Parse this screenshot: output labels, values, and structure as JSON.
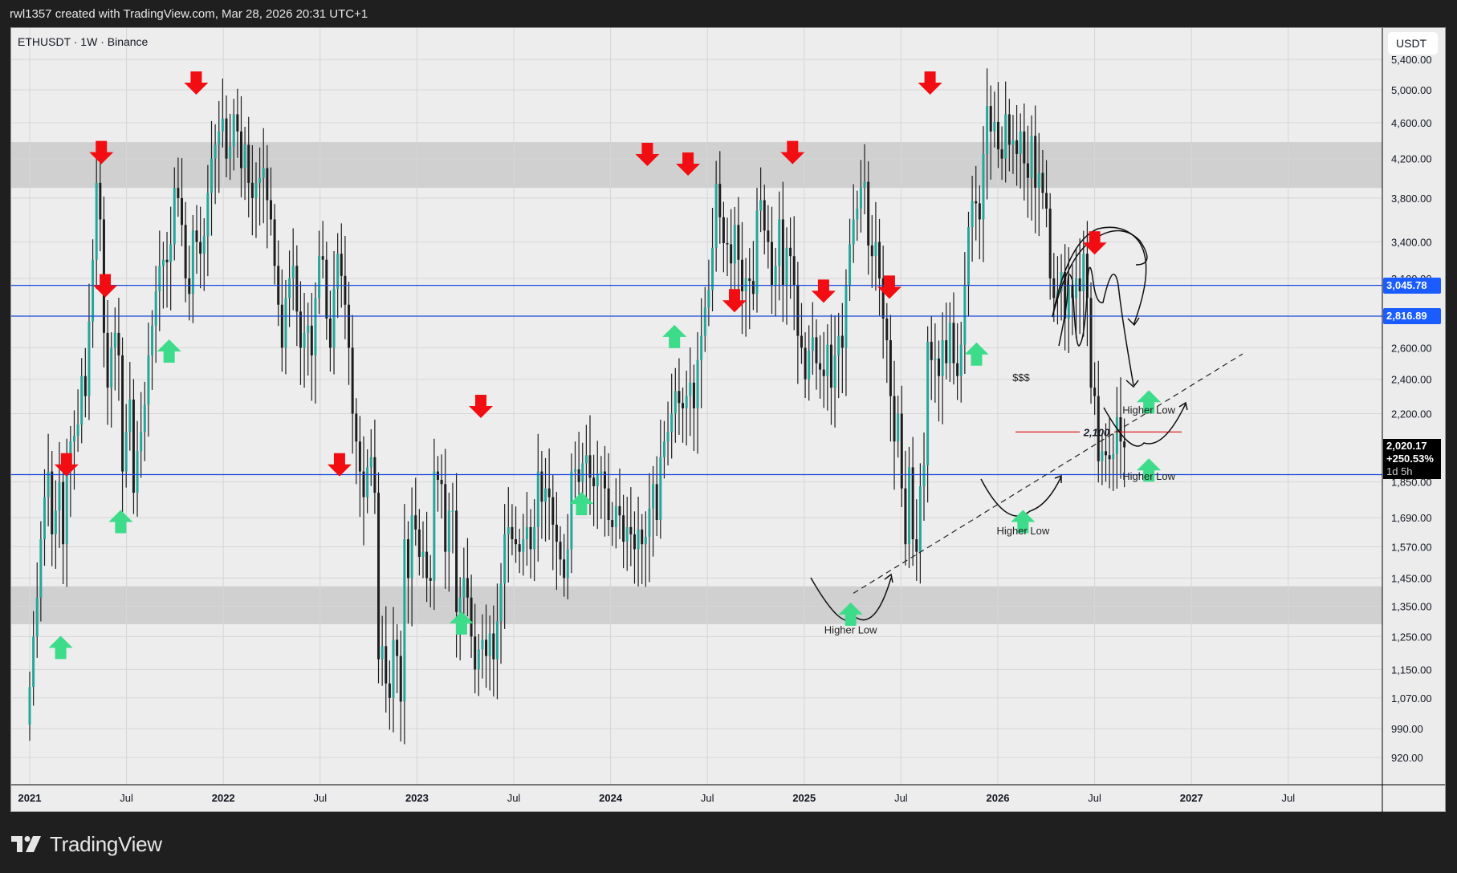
{
  "header": {
    "attribution": "rwl1357 created with TradingView.com, Mar 28, 2026 20:31 UTC+1"
  },
  "chart": {
    "symbol_line": "ETHUSDT · 1W · Binance",
    "currency_button": "USDT",
    "logo_text": "TradingView"
  },
  "colors": {
    "up": "#26a69a",
    "down": "#1e1e1e",
    "level_line": "#1848d8",
    "level_tag": "#1a5cff",
    "red_line": "#e0201b",
    "sell_arrow": "#f20d12",
    "buy_arrow": "#3ddc8a",
    "zone": "#d0d0d0",
    "background": "#ededed"
  },
  "chart_data": {
    "type": "candlestick",
    "title": "ETHUSDT · 1W · Binance",
    "xlabel": "",
    "ylabel": "USDT",
    "y_scale": "log",
    "ylim": [
      860,
      5500
    ],
    "y_ticks": [
      "920.00",
      "990.00",
      "1,070.00",
      "1,150.00",
      "1,250.00",
      "1,350.00",
      "1,450.00",
      "1,570.00",
      "1,690.00",
      "1,850.00",
      "2,200.00",
      "2,400.00",
      "2,600.00",
      "3,100.00",
      "3,400.00",
      "3,800.00",
      "4,200.00",
      "4,600.00",
      "5,000.00",
      "5,400.00"
    ],
    "y_tick_values": [
      920,
      990,
      1070,
      1150,
      1250,
      1350,
      1450,
      1570,
      1690,
      1850,
      2200,
      2400,
      2600,
      3100,
      3400,
      3800,
      4200,
      4600,
      5000,
      5400
    ],
    "x_ticks": [
      {
        "label": "2021",
        "t": 2021.0,
        "bold": true
      },
      {
        "label": "Jul",
        "t": 2021.5,
        "bold": false
      },
      {
        "label": "2022",
        "t": 2022.0,
        "bold": true
      },
      {
        "label": "Jul",
        "t": 2022.5,
        "bold": false
      },
      {
        "label": "2023",
        "t": 2023.0,
        "bold": true
      },
      {
        "label": "Jul",
        "t": 2023.5,
        "bold": false
      },
      {
        "label": "2024",
        "t": 2024.0,
        "bold": true
      },
      {
        "label": "Jul",
        "t": 2024.5,
        "bold": false
      },
      {
        "label": "2025",
        "t": 2025.0,
        "bold": true
      },
      {
        "label": "Jul",
        "t": 2025.5,
        "bold": false
      },
      {
        "label": "2026",
        "t": 2026.0,
        "bold": true
      },
      {
        "label": "Jul",
        "t": 2026.5,
        "bold": false
      },
      {
        "label": "2027",
        "t": 2027.0,
        "bold": true
      },
      {
        "label": "Jul",
        "t": 2027.5,
        "bold": false
      }
    ],
    "start": 2021.0,
    "weekly_close": [
      1100,
      1250,
      1380,
      1600,
      1780,
      1900,
      1620,
      1720,
      1850,
      1580,
      1900,
      2050,
      2080,
      2140,
      2420,
      2300,
      2780,
      3250,
      3950,
      3600,
      2700,
      2350,
      2600,
      2700,
      2550,
      1900,
      2100,
      2280,
      1800,
      2000,
      2100,
      2250,
      2550,
      2750,
      3000,
      3200,
      3250,
      3230,
      3380,
      3900,
      3800,
      3550,
      3100,
      2980,
      3500,
      3400,
      3300,
      3450,
      3850,
      4200,
      4350,
      4500,
      4650,
      4200,
      4330,
      4700,
      4500,
      4100,
      4350,
      3950,
      3800,
      3950,
      4000,
      4100,
      3780,
      3600,
      3200,
      2900,
      2600,
      2950,
      3100,
      3200,
      2850,
      2600,
      2700,
      2750,
      2550,
      2950,
      3280,
      3250,
      2800,
      2600,
      3020,
      3300,
      3120,
      2900,
      2600,
      2200,
      2050,
      1900,
      1780,
      1920,
      1970,
      1800,
      1180,
      1220,
      1110,
      1070,
      1240,
      1190,
      1060,
      1600,
      1450,
      1700,
      1640,
      1530,
      1550,
      1450,
      1440,
      1900,
      1860,
      1840,
      1550,
      1720,
      1720,
      1330,
      1380,
      1450,
      1380,
      1250,
      1150,
      1210,
      1240,
      1190,
      1260,
      1180,
      1300,
      1430,
      1620,
      1650,
      1600,
      1580,
      1550,
      1600,
      1650,
      1560,
      1650,
      1900,
      1760,
      1820,
      1780,
      1660,
      1590,
      1520,
      1450,
      1560,
      1900,
      1910,
      1850,
      1940,
      1980,
      1870,
      1830,
      1890,
      1900,
      1820,
      1680,
      1650,
      1740,
      1700,
      1590,
      1650,
      1620,
      1560,
      1640,
      1580,
      1610,
      1730,
      1840,
      1680,
      1970,
      2050,
      2100,
      2200,
      2330,
      2260,
      2230,
      2300,
      2380,
      2230,
      2520,
      2680,
      2880,
      3010,
      3350,
      3940,
      3620,
      3390,
      3380,
      3220,
      3550,
      3250,
      3000,
      3100,
      3080,
      2980,
      3680,
      3780,
      3500,
      3400,
      3050,
      3200,
      3600,
      3050,
      3350,
      3280,
      3050,
      2680,
      2600,
      2400,
      2580,
      2670,
      2500,
      2460,
      2420,
      2620,
      2350,
      2550,
      2680,
      2600,
      3050,
      3380,
      3600,
      3700,
      3900,
      3960,
      3370,
      3280,
      3400,
      3100,
      2800,
      2650,
      2300,
      2050,
      2200,
      1820,
      1580,
      1920,
      1600,
      1550,
      1830,
      1930,
      2640,
      2520,
      2530,
      2420,
      2650,
      2500,
      2770,
      2500,
      2420,
      2620,
      3050,
      3530,
      3770,
      3750,
      3600,
      4250,
      4800,
      4500,
      4610,
      4300,
      4200,
      4700,
      4350,
      4400,
      4250,
      4500,
      4150,
      4000,
      4450,
      3900,
      4050,
      3850,
      3700,
      3100,
      2950,
      3000,
      3150,
      2800,
      3050,
      2950,
      3100,
      3000,
      3300,
      2950,
      2350,
      2300,
      1950,
      2000,
      1980,
      1960,
      1985,
      2180,
      2050,
      2020
    ],
    "zones": [
      {
        "name": "resistance-zone",
        "low": 3900,
        "high": 4380
      },
      {
        "name": "support-zone",
        "low": 1290,
        "high": 1420
      }
    ],
    "horizontal_levels": [
      {
        "name": "level-3045",
        "price": 3045.78,
        "label": "3,045.78",
        "tagged": true
      },
      {
        "name": "level-2816",
        "price": 2816.89,
        "label": "2,816.89",
        "tagged": true
      },
      {
        "name": "level-1900",
        "price": 1885,
        "label": "",
        "tagged": false
      }
    ],
    "last_price": {
      "value": "2,020.17",
      "change": "+250.53%",
      "countdown": "1d 5h",
      "price": 2020.17
    },
    "red_level": {
      "price": 2100,
      "label": "2,100"
    },
    "sell_arrows": [
      [
        2021.19,
        1880
      ],
      [
        2021.37,
        4150
      ],
      [
        2021.39,
        2960
      ],
      [
        2021.86,
        4950
      ],
      [
        2022.6,
        1880
      ],
      [
        2023.33,
        2180
      ],
      [
        2024.19,
        4130
      ],
      [
        2024.4,
        4030
      ],
      [
        2024.64,
        2850
      ],
      [
        2024.94,
        4150
      ],
      [
        2025.1,
        2920
      ],
      [
        2025.44,
        2950
      ],
      [
        2025.65,
        4950
      ],
      [
        2026.5,
        3300
      ]
    ],
    "buy_arrows": [
      [
        2021.16,
        1250
      ],
      [
        2021.47,
        1720
      ],
      [
        2021.72,
        2650
      ],
      [
        2023.23,
        1330
      ],
      [
        2023.85,
        1800
      ],
      [
        2024.33,
        2750
      ],
      [
        2025.24,
        1360
      ],
      [
        2025.89,
        2630
      ],
      [
        2026.13,
        1720
      ],
      [
        2026.78,
        2330
      ],
      [
        2026.78,
        1960
      ]
    ],
    "annotations": [
      {
        "text": "Higher Low",
        "t": 2025.24,
        "price": 1260
      },
      {
        "text": "Higher Low",
        "t": 2026.13,
        "price": 1620
      },
      {
        "text": "Higher Low",
        "t": 2026.78,
        "price": 2200
      },
      {
        "text": "Higher Low",
        "t": 2026.78,
        "price": 1860
      },
      {
        "text": "$$$",
        "t": 2026.12,
        "price": 2390
      }
    ]
  }
}
